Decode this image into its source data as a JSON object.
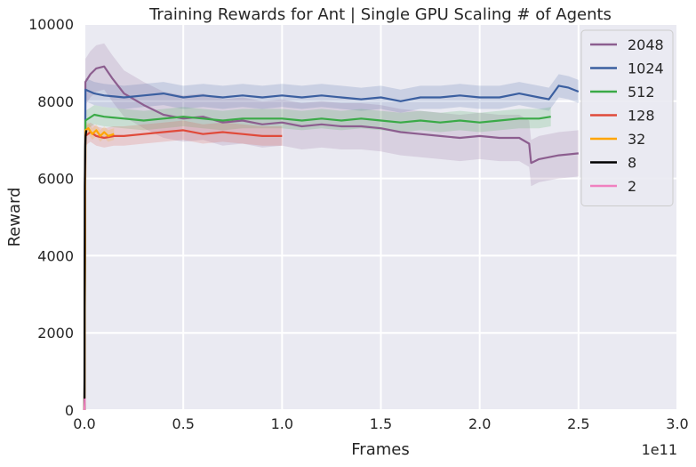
{
  "chart_data": {
    "type": "line",
    "title": "Training Rewards for Ant | Single GPU Scaling # of Agents",
    "xlabel": "Frames",
    "ylabel": "Reward",
    "x_offset_label": "1e11",
    "xlim": [
      0,
      3.0
    ],
    "ylim": [
      0,
      10000
    ],
    "xticks": [
      0.0,
      0.5,
      1.0,
      1.5,
      2.0,
      2.5,
      3.0
    ],
    "xtick_labels": [
      "0.0",
      "0.5",
      "1.0",
      "1.5",
      "2.0",
      "2.5",
      "3.0"
    ],
    "yticks": [
      0,
      2000,
      4000,
      6000,
      8000,
      10000
    ],
    "ytick_labels": [
      "0",
      "2000",
      "4000",
      "6000",
      "8000",
      "10000"
    ],
    "grid": true,
    "legend_position": "top-right",
    "background": "#eaeaf2",
    "series": [
      {
        "name": "2048",
        "color": "#8c5e8f",
        "band": 600,
        "x": [
          0,
          0.005,
          0.03,
          0.06,
          0.1,
          0.14,
          0.2,
          0.3,
          0.4,
          0.5,
          0.6,
          0.7,
          0.8,
          0.9,
          1.0,
          1.1,
          1.2,
          1.3,
          1.4,
          1.5,
          1.6,
          1.7,
          1.8,
          1.9,
          2.0,
          2.1,
          2.2,
          2.25,
          2.26,
          2.3,
          2.4,
          2.5
        ],
        "y": [
          0,
          8500,
          8700,
          8850,
          8900,
          8600,
          8200,
          7900,
          7650,
          7550,
          7600,
          7450,
          7500,
          7400,
          7450,
          7350,
          7400,
          7350,
          7350,
          7300,
          7200,
          7150,
          7100,
          7050,
          7100,
          7050,
          7050,
          6900,
          6400,
          6500,
          6600,
          6650
        ]
      },
      {
        "name": "1024",
        "color": "#3b5fa0",
        "band": 300,
        "x": [
          0,
          0.005,
          0.05,
          0.1,
          0.2,
          0.3,
          0.4,
          0.5,
          0.6,
          0.7,
          0.8,
          0.9,
          1.0,
          1.1,
          1.2,
          1.3,
          1.4,
          1.5,
          1.6,
          1.7,
          1.8,
          1.9,
          2.0,
          2.1,
          2.2,
          2.3,
          2.35,
          2.4,
          2.45,
          2.5
        ],
        "y": [
          0,
          8300,
          8200,
          8150,
          8100,
          8150,
          8200,
          8100,
          8150,
          8100,
          8150,
          8100,
          8150,
          8100,
          8150,
          8100,
          8050,
          8100,
          8000,
          8100,
          8100,
          8150,
          8100,
          8100,
          8200,
          8100,
          8050,
          8400,
          8350,
          8250
        ]
      },
      {
        "name": "512",
        "color": "#3aaa47",
        "band": 250,
        "x": [
          0,
          0.005,
          0.05,
          0.1,
          0.2,
          0.3,
          0.4,
          0.5,
          0.6,
          0.7,
          0.8,
          0.9,
          1.0,
          1.1,
          1.2,
          1.3,
          1.4,
          1.5,
          1.6,
          1.7,
          1.8,
          1.9,
          2.0,
          2.1,
          2.2,
          2.3,
          2.36
        ],
        "y": [
          0,
          7500,
          7650,
          7600,
          7550,
          7500,
          7550,
          7600,
          7550,
          7500,
          7550,
          7550,
          7550,
          7500,
          7550,
          7500,
          7550,
          7500,
          7450,
          7500,
          7450,
          7500,
          7450,
          7500,
          7550,
          7550,
          7600
        ]
      },
      {
        "name": "128",
        "color": "#e04a3a",
        "band": 250,
        "x": [
          0,
          0.005,
          0.03,
          0.06,
          0.1,
          0.15,
          0.2,
          0.3,
          0.4,
          0.5,
          0.6,
          0.7,
          0.8,
          0.9,
          0.95,
          1.0
        ],
        "y": [
          0,
          7100,
          7200,
          7100,
          7050,
          7100,
          7100,
          7150,
          7200,
          7250,
          7150,
          7200,
          7150,
          7100,
          7100,
          7100
        ]
      },
      {
        "name": "32",
        "color": "#ffa500",
        "band": 150,
        "x": [
          0,
          0.005,
          0.02,
          0.04,
          0.06,
          0.08,
          0.1,
          0.12,
          0.15
        ],
        "y": [
          0,
          7250,
          7300,
          7150,
          7250,
          7100,
          7200,
          7100,
          7150
        ]
      },
      {
        "name": "8",
        "color": "#000000",
        "band": 0,
        "x": [
          0,
          0.002,
          0.004,
          0.006,
          0.008,
          0.01
        ],
        "y": [
          0,
          5800,
          6800,
          7100,
          7200,
          7250
        ]
      },
      {
        "name": "2",
        "color": "#f080c0",
        "band": 0,
        "x": [
          0,
          0.002
        ],
        "y": [
          0,
          300
        ]
      }
    ]
  }
}
